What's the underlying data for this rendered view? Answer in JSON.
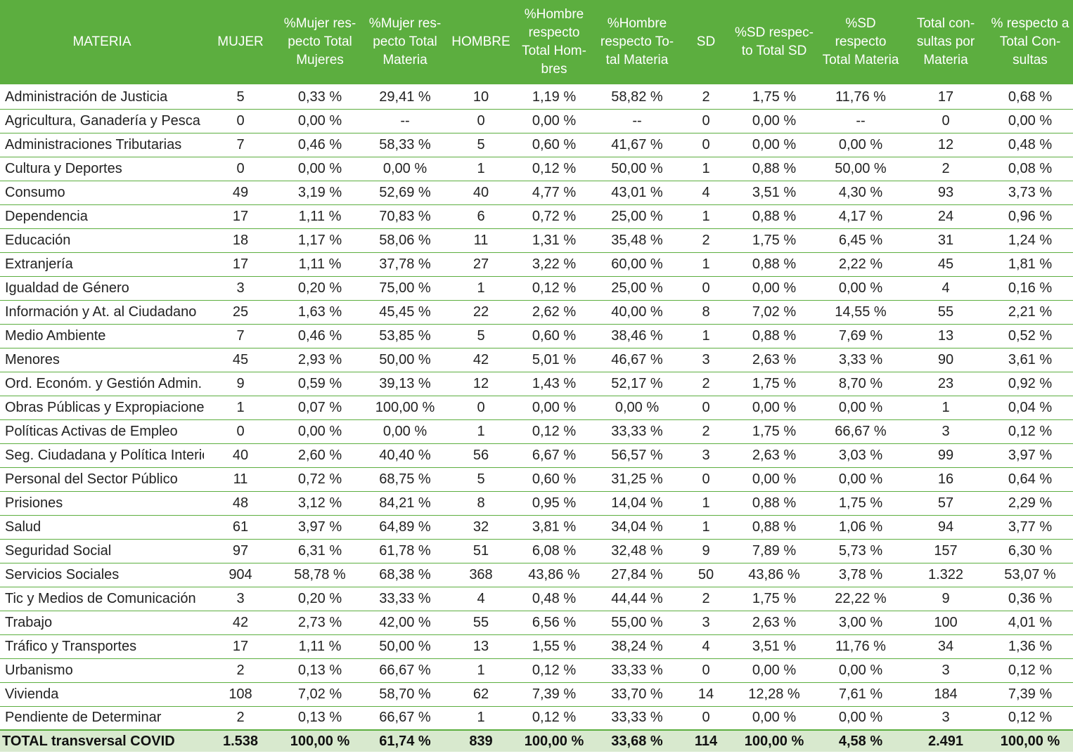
{
  "headers": [
    "MATERIA",
    "MUJER",
    "%Mujer res-\npecto Total\nMujeres",
    "%Mujer res-\npecto Total\nMateria",
    "HOMBRE",
    "%Hombre\nrespecto\nTotal Hom-\nbres",
    "%Hombre\nrespecto To-\ntal Materia",
    "SD",
    "%SD respec-\nto Total SD",
    "%SD respecto\nTotal Materia",
    "Total con-\nsultas por\nMateria",
    "% respecto a\nTotal Con-\nsultas"
  ],
  "rows": [
    [
      "Administración de Justicia",
      "5",
      "0,33 %",
      "29,41 %",
      "10",
      "1,19 %",
      "58,82 %",
      "2",
      "1,75 %",
      "11,76 %",
      "17",
      "0,68 %"
    ],
    [
      "Agricultura, Ganadería y Pesca",
      "0",
      "0,00 %",
      "--",
      "0",
      "0,00 %",
      "--",
      "0",
      "0,00 %",
      "--",
      "0",
      "0,00 %"
    ],
    [
      "Administraciones Tributarias",
      "7",
      "0,46 %",
      "58,33 %",
      "5",
      "0,60 %",
      "41,67 %",
      "0",
      "0,00 %",
      "0,00 %",
      "12",
      "0,48 %"
    ],
    [
      "Cultura y Deportes",
      "0",
      "0,00 %",
      "0,00 %",
      "1",
      "0,12 %",
      "50,00 %",
      "1",
      "0,88 %",
      "50,00 %",
      "2",
      "0,08 %"
    ],
    [
      "Consumo",
      "49",
      "3,19 %",
      "52,69 %",
      "40",
      "4,77 %",
      "43,01 %",
      "4",
      "3,51 %",
      "4,30 %",
      "93",
      "3,73 %"
    ],
    [
      "Dependencia",
      "17",
      "1,11 %",
      "70,83 %",
      "6",
      "0,72 %",
      "25,00 %",
      "1",
      "0,88 %",
      "4,17 %",
      "24",
      "0,96 %"
    ],
    [
      "Educación",
      "18",
      "1,17 %",
      "58,06 %",
      "11",
      "1,31 %",
      "35,48 %",
      "2",
      "1,75 %",
      "6,45 %",
      "31",
      "1,24 %"
    ],
    [
      "Extranjería",
      "17",
      "1,11 %",
      "37,78 %",
      "27",
      "3,22 %",
      "60,00 %",
      "1",
      "0,88 %",
      "2,22 %",
      "45",
      "1,81 %"
    ],
    [
      "Igualdad de Género",
      "3",
      "0,20 %",
      "75,00 %",
      "1",
      "0,12 %",
      "25,00 %",
      "0",
      "0,00 %",
      "0,00 %",
      "4",
      "0,16 %"
    ],
    [
      "Información y At. al Ciudadano",
      "25",
      "1,63 %",
      "45,45 %",
      "22",
      "2,62 %",
      "40,00 %",
      "8",
      "7,02 %",
      "14,55 %",
      "55",
      "2,21 %"
    ],
    [
      "Medio Ambiente",
      "7",
      "0,46 %",
      "53,85 %",
      "5",
      "0,60 %",
      "38,46 %",
      "1",
      "0,88 %",
      "7,69 %",
      "13",
      "0,52 %"
    ],
    [
      "Menores",
      "45",
      "2,93 %",
      "50,00 %",
      "42",
      "5,01 %",
      "46,67 %",
      "3",
      "2,63 %",
      "3,33 %",
      "90",
      "3,61 %"
    ],
    [
      "Ord. Económ. y Gestión Admin.",
      "9",
      "0,59 %",
      "39,13 %",
      "12",
      "1,43 %",
      "52,17 %",
      "2",
      "1,75 %",
      "8,70 %",
      "23",
      "0,92 %"
    ],
    [
      "Obras Públicas y Expropiaciones",
      "1",
      "0,07 %",
      "100,00 %",
      "0",
      "0,00 %",
      "0,00 %",
      "0",
      "0,00 %",
      "0,00 %",
      "1",
      "0,04 %"
    ],
    [
      "Políticas Activas de Empleo",
      "0",
      "0,00 %",
      "0,00 %",
      "1",
      "0,12 %",
      "33,33 %",
      "2",
      "1,75 %",
      "66,67 %",
      "3",
      "0,12 %"
    ],
    [
      "Seg. Ciudadana y Política Interior",
      "40",
      "2,60 %",
      "40,40 %",
      "56",
      "6,67 %",
      "56,57 %",
      "3",
      "2,63 %",
      "3,03 %",
      "99",
      "3,97 %"
    ],
    [
      "Personal del Sector Público",
      "11",
      "0,72 %",
      "68,75 %",
      "5",
      "0,60 %",
      "31,25 %",
      "0",
      "0,00 %",
      "0,00 %",
      "16",
      "0,64 %"
    ],
    [
      "Prisiones",
      "48",
      "3,12 %",
      "84,21 %",
      "8",
      "0,95 %",
      "14,04 %",
      "1",
      "0,88 %",
      "1,75 %",
      "57",
      "2,29 %"
    ],
    [
      "Salud",
      "61",
      "3,97 %",
      "64,89 %",
      "32",
      "3,81 %",
      "34,04 %",
      "1",
      "0,88 %",
      "1,06 %",
      "94",
      "3,77 %"
    ],
    [
      "Seguridad Social",
      "97",
      "6,31 %",
      "61,78 %",
      "51",
      "6,08 %",
      "32,48 %",
      "9",
      "7,89 %",
      "5,73 %",
      "157",
      "6,30 %"
    ],
    [
      "Servicios Sociales",
      "904",
      "58,78 %",
      "68,38 %",
      "368",
      "43,86 %",
      "27,84 %",
      "50",
      "43,86 %",
      "3,78 %",
      "1.322",
      "53,07 %"
    ],
    [
      "Tic y Medios de Comunicación",
      "3",
      "0,20 %",
      "33,33 %",
      "4",
      "0,48 %",
      "44,44 %",
      "2",
      "1,75 %",
      "22,22 %",
      "9",
      "0,36 %"
    ],
    [
      "Trabajo",
      "42",
      "2,73 %",
      "42,00 %",
      "55",
      "6,56 %",
      "55,00 %",
      "3",
      "2,63 %",
      "3,00 %",
      "100",
      "4,01 %"
    ],
    [
      "Tráfico y Transportes",
      "17",
      "1,11 %",
      "50,00 %",
      "13",
      "1,55 %",
      "38,24 %",
      "4",
      "3,51 %",
      "11,76 %",
      "34",
      "1,36 %"
    ],
    [
      "Urbanismo",
      "2",
      "0,13 %",
      "66,67 %",
      "1",
      "0,12 %",
      "33,33 %",
      "0",
      "0,00 %",
      "0,00 %",
      "3",
      "0,12 %"
    ],
    [
      "Vivienda",
      "108",
      "7,02 %",
      "58,70 %",
      "62",
      "7,39 %",
      "33,70 %",
      "14",
      "12,28 %",
      "7,61 %",
      "184",
      "7,39 %"
    ],
    [
      "Pendiente de Determinar",
      "2",
      "0,13 %",
      "66,67 %",
      "1",
      "0,12 %",
      "33,33 %",
      "0",
      "0,00 %",
      "0,00 %",
      "3",
      "0,12 %"
    ]
  ],
  "total": [
    "TOTAL transversal COVID",
    "1.538",
    "100,00 %",
    "61,74 %",
    "839",
    "100,00 %",
    "33,68 %",
    "114",
    "100,00 %",
    "4,58 %",
    "2.491",
    "100,00 %"
  ],
  "colors": {
    "header_bg": "#5cae3f",
    "header_text": "#ffffff",
    "total_bg": "#d8e9ce",
    "rule": "#5cae3f"
  }
}
